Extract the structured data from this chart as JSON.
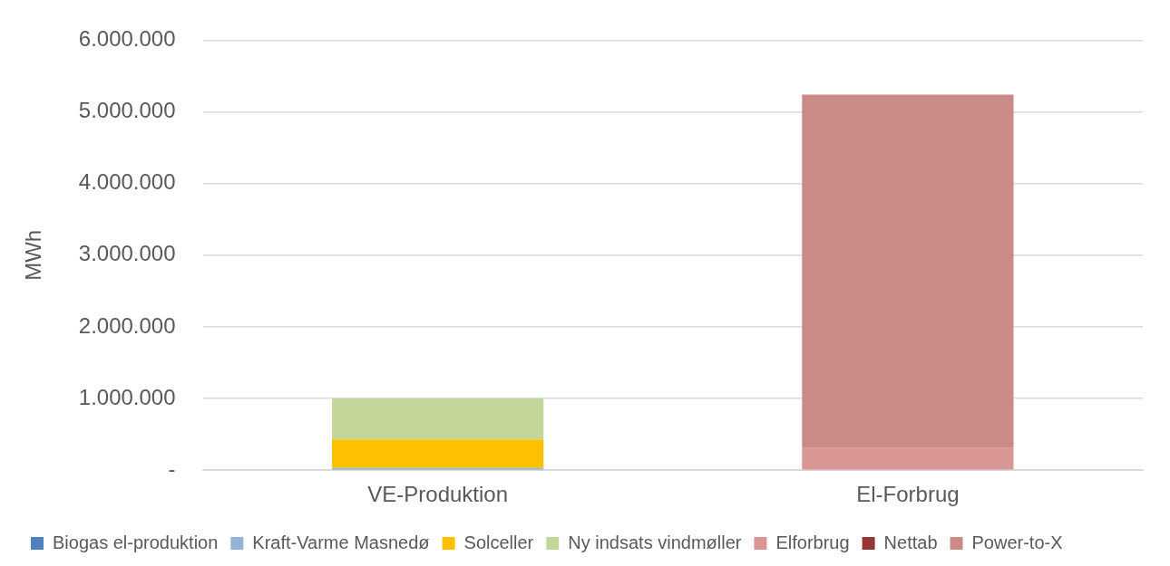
{
  "chart_data": {
    "type": "bar",
    "stacked": true,
    "ylabel": "MWh",
    "categories": [
      "VE-Produktion",
      "El-Forbrug"
    ],
    "series": [
      {
        "name": "Biogas el-produktion",
        "color": "#4f81bd",
        "values": [
          10000,
          null
        ]
      },
      {
        "name": "Kraft-Varme Masnedø",
        "color": "#95b3d7",
        "values": [
          20000,
          null
        ]
      },
      {
        "name": "Solceller",
        "color": "#ffc000",
        "values": [
          400000,
          null
        ]
      },
      {
        "name": "Ny indsats vindmøller",
        "color": "#c4d79b",
        "values": [
          570000,
          null
        ]
      },
      {
        "name": "Elforbrug",
        "color": "#da9694",
        "values": [
          null,
          310000
        ]
      },
      {
        "name": "Nettab",
        "color": "#963634",
        "values": [
          null,
          null
        ]
      },
      {
        "name": "Power-to-X",
        "color": "#c98a88",
        "values": [
          null,
          4930000
        ]
      }
    ],
    "ylim": [
      0,
      6000000
    ],
    "yticks": [
      {
        "value": 0,
        "label": "-"
      },
      {
        "value": 1000000,
        "label": "1.000.000"
      },
      {
        "value": 2000000,
        "label": "2.000.000"
      },
      {
        "value": 3000000,
        "label": "3.000.000"
      },
      {
        "value": 4000000,
        "label": "4.000.000"
      },
      {
        "value": 5000000,
        "label": "5.000.000"
      },
      {
        "value": 6000000,
        "label": "6.000.000"
      }
    ],
    "grid": "y",
    "legend": "bottom"
  }
}
